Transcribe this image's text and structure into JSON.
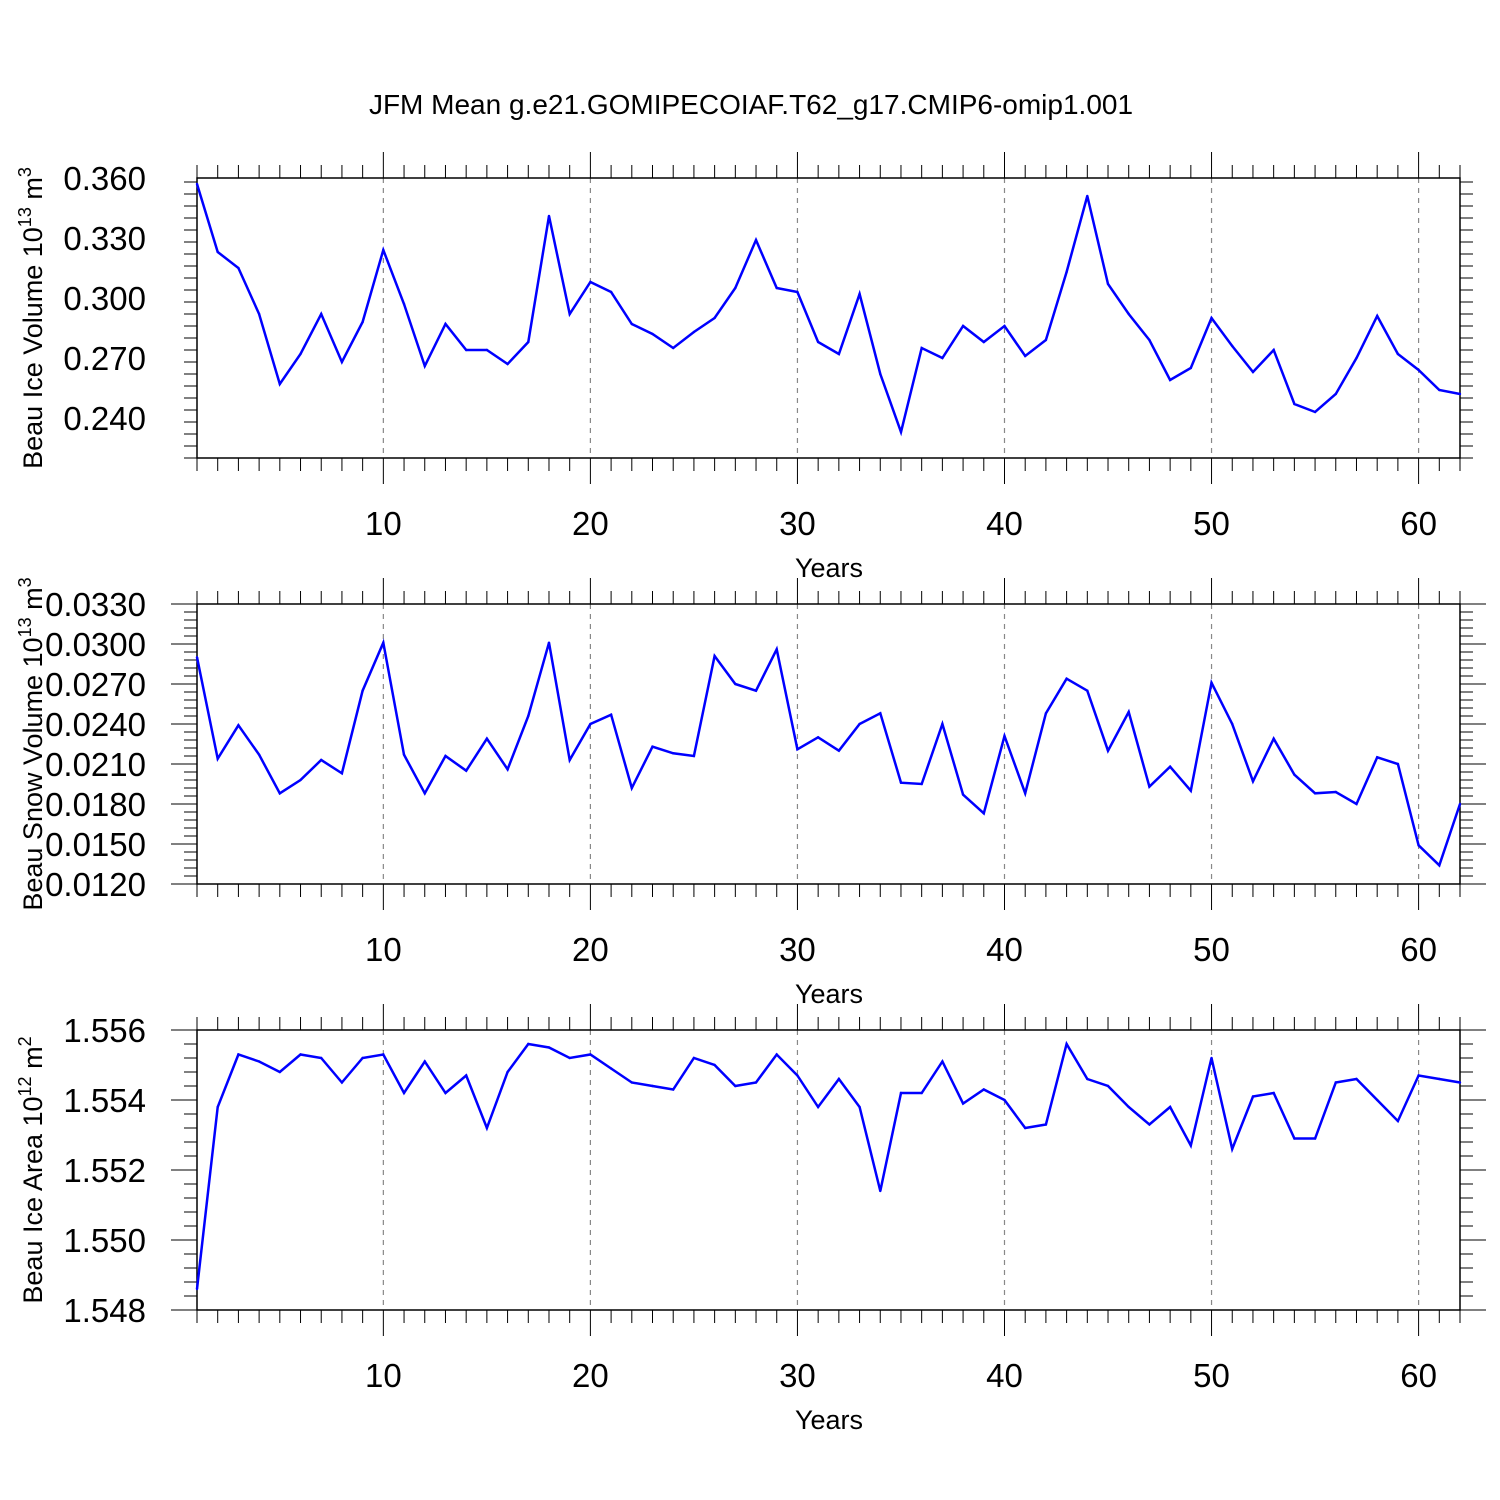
{
  "title": "JFM Mean g.e21.GOMIPECOIAF.T62_g17.CMIP6-omip1.001",
  "chart_data": [
    {
      "type": "line",
      "ylabel": {
        "base": "Beau Ice Volume 10",
        "exp": "13",
        "unit": " m",
        "unit_exp": "3"
      },
      "xlabel": "Years",
      "xlim": [
        1,
        62
      ],
      "ylim": [
        0.22,
        0.36
      ],
      "xticks": [
        10,
        20,
        30,
        40,
        50,
        60
      ],
      "yticks": [
        "0.360",
        "0.330",
        "0.300",
        "0.270",
        "0.240"
      ],
      "ytick_values": [
        0.36,
        0.33,
        0.3,
        0.27,
        0.24
      ],
      "color": "#0000ff",
      "x": [
        1,
        2,
        3,
        4,
        5,
        6,
        7,
        8,
        9,
        10,
        11,
        12,
        13,
        14,
        15,
        16,
        17,
        18,
        19,
        20,
        21,
        22,
        23,
        24,
        25,
        26,
        27,
        28,
        29,
        30,
        31,
        32,
        33,
        34,
        35,
        36,
        37,
        38,
        39,
        40,
        41,
        42,
        43,
        44,
        45,
        46,
        47,
        48,
        49,
        50,
        51,
        52,
        53,
        54,
        55,
        56,
        57,
        58,
        59,
        60,
        61,
        62
      ],
      "values": [
        0.357,
        0.323,
        0.315,
        0.292,
        0.257,
        0.272,
        0.292,
        0.268,
        0.288,
        0.324,
        0.297,
        0.266,
        0.287,
        0.274,
        0.274,
        0.267,
        0.278,
        0.341,
        0.292,
        0.308,
        0.303,
        0.287,
        0.282,
        0.275,
        0.283,
        0.29,
        0.305,
        0.329,
        0.305,
        0.303,
        0.278,
        0.272,
        0.302,
        0.262,
        0.233,
        0.275,
        0.27,
        0.286,
        0.278,
        0.286,
        0.271,
        0.279,
        0.313,
        0.351,
        0.307,
        0.292,
        0.279,
        0.259,
        0.265,
        0.29,
        0.276,
        0.263,
        0.274,
        0.247,
        0.243,
        0.252,
        0.27,
        0.291,
        0.272,
        0.264,
        0.254,
        0.252
      ]
    },
    {
      "type": "line",
      "ylabel": {
        "base": "Beau Snow Volume 10",
        "exp": "13",
        "unit": " m",
        "unit_exp": "3"
      },
      "xlabel": "Years",
      "xlim": [
        1,
        62
      ],
      "ylim": [
        0.012,
        0.033
      ],
      "xticks": [
        10,
        20,
        30,
        40,
        50,
        60
      ],
      "yticks": [
        "0.0330",
        "0.0300",
        "0.0270",
        "0.0240",
        "0.0210",
        "0.0180",
        "0.0150",
        "0.0120"
      ],
      "ytick_values": [
        0.033,
        0.03,
        0.027,
        0.024,
        0.021,
        0.018,
        0.015,
        0.012
      ],
      "color": "#0000ff",
      "x": [
        1,
        2,
        3,
        4,
        5,
        6,
        7,
        8,
        9,
        10,
        11,
        12,
        13,
        14,
        15,
        16,
        17,
        18,
        19,
        20,
        21,
        22,
        23,
        24,
        25,
        26,
        27,
        28,
        29,
        30,
        31,
        32,
        33,
        34,
        35,
        36,
        37,
        38,
        39,
        40,
        41,
        42,
        43,
        44,
        45,
        46,
        47,
        48,
        49,
        50,
        51,
        52,
        53,
        54,
        55,
        56,
        57,
        58,
        59,
        60,
        61,
        62
      ],
      "values": [
        0.029,
        0.0214,
        0.0239,
        0.0217,
        0.0188,
        0.0198,
        0.0213,
        0.0203,
        0.0265,
        0.0301,
        0.0217,
        0.0188,
        0.0216,
        0.0205,
        0.0229,
        0.0206,
        0.0246,
        0.0301,
        0.0213,
        0.024,
        0.0247,
        0.0192,
        0.0223,
        0.0218,
        0.0216,
        0.0291,
        0.027,
        0.0265,
        0.0296,
        0.0221,
        0.023,
        0.022,
        0.024,
        0.0248,
        0.0196,
        0.0195,
        0.024,
        0.0187,
        0.0173,
        0.0231,
        0.0188,
        0.0248,
        0.0274,
        0.0265,
        0.022,
        0.0249,
        0.0193,
        0.0208,
        0.019,
        0.0271,
        0.024,
        0.0197,
        0.0229,
        0.0202,
        0.0188,
        0.0189,
        0.018,
        0.0215,
        0.021,
        0.0149,
        0.0134,
        0.018
      ]
    },
    {
      "type": "line",
      "ylabel": {
        "base": "Beau Ice Area 10",
        "exp": "12",
        "unit": " m",
        "unit_exp": "2"
      },
      "xlabel": "Years",
      "xlim": [
        1,
        62
      ],
      "ylim": [
        1.548,
        1.556
      ],
      "xticks": [
        10,
        20,
        30,
        40,
        50,
        60
      ],
      "yticks": [
        "1.556",
        "1.554",
        "1.552",
        "1.550",
        "1.548"
      ],
      "ytick_values": [
        1.556,
        1.554,
        1.552,
        1.55,
        1.548
      ],
      "color": "#0000ff",
      "x": [
        1,
        2,
        3,
        4,
        5,
        6,
        7,
        8,
        9,
        10,
        11,
        12,
        13,
        14,
        15,
        16,
        17,
        18,
        19,
        20,
        21,
        22,
        23,
        24,
        25,
        26,
        27,
        28,
        29,
        30,
        31,
        32,
        33,
        34,
        35,
        36,
        37,
        38,
        39,
        40,
        41,
        42,
        43,
        44,
        45,
        46,
        47,
        48,
        49,
        50,
        51,
        52,
        53,
        54,
        55,
        56,
        57,
        58,
        59,
        60,
        61,
        62
      ],
      "values": [
        1.5486,
        1.5538,
        1.5553,
        1.5551,
        1.5548,
        1.5553,
        1.5552,
        1.5545,
        1.5552,
        1.5553,
        1.5542,
        1.5551,
        1.5542,
        1.5547,
        1.5532,
        1.5548,
        1.5556,
        1.5555,
        1.5552,
        1.5553,
        1.5549,
        1.5545,
        1.5544,
        1.5543,
        1.5552,
        1.555,
        1.5544,
        1.5545,
        1.5553,
        1.5547,
        1.5538,
        1.5546,
        1.5538,
        1.5514,
        1.5542,
        1.5542,
        1.5551,
        1.5539,
        1.5543,
        1.554,
        1.5532,
        1.5533,
        1.5556,
        1.5546,
        1.5544,
        1.5538,
        1.5533,
        1.5538,
        1.5527,
        1.5552,
        1.5526,
        1.5541,
        1.5542,
        1.5529,
        1.5529,
        1.5545,
        1.5546,
        1.554,
        1.5534,
        1.5547,
        1.5546,
        1.5545
      ]
    }
  ]
}
